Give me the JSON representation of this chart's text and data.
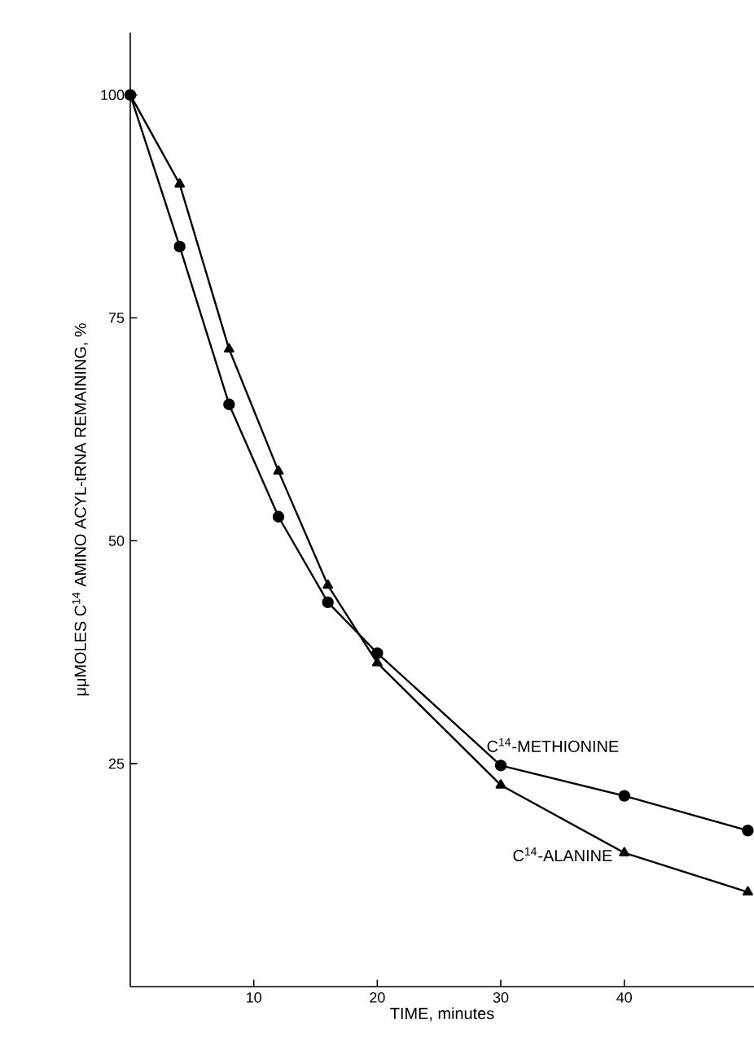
{
  "chart_data": {
    "type": "line",
    "xlabel": "TIME, minutes",
    "ylabel": "μμMOLES C$^{14}$ AMINO ACYL-tRNA REMAINING, %",
    "x": [
      0,
      4,
      8,
      12,
      16,
      20,
      30,
      40,
      50
    ],
    "series": [
      {
        "name": "C$^{14}$-METHIONINE",
        "color": "#000000",
        "marker": "circle",
        "values": [
          100,
          83,
          65.3,
          52.7,
          43.1,
          37.4,
          24.8,
          21.4,
          17.5
        ]
      },
      {
        "name": "C$^{14}$-ALANINE",
        "color": "#000000",
        "marker": "triangle",
        "values": [
          100,
          90,
          71.5,
          57.8,
          45,
          36.3,
          22.6,
          15,
          10.6
        ]
      }
    ],
    "xlim": [
      0,
      50.5
    ],
    "ylim": [
      0,
      107
    ],
    "xticks": [
      10,
      20,
      30,
      40
    ],
    "yticks": [
      25,
      50,
      75,
      100
    ],
    "line_style": "solid"
  }
}
